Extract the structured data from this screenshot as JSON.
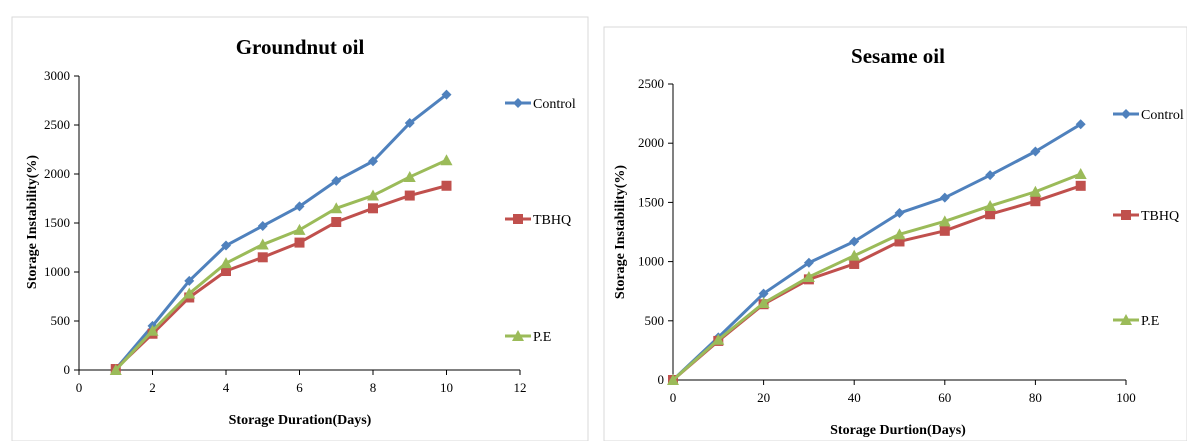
{
  "chart_data": [
    {
      "type": "line",
      "title": "Groundnut oil",
      "xlabel": "Storage Duration(Days)",
      "ylabel": "Storage Instability(%)",
      "xlim": [
        0,
        12
      ],
      "ylim": [
        0,
        3000
      ],
      "xticks": [
        0,
        2,
        4,
        6,
        8,
        10,
        12
      ],
      "yticks": [
        0,
        500,
        1000,
        1500,
        2000,
        2500,
        3000
      ],
      "x": [
        1,
        2,
        3,
        4,
        5,
        6,
        7,
        8,
        9,
        10
      ],
      "legend": "right",
      "grid": false,
      "series": [
        {
          "name": "Control",
          "color": "#4f81bd",
          "marker": "diamond",
          "values": [
            10,
            450,
            910,
            1270,
            1470,
            1670,
            1930,
            2130,
            2520,
            2810
          ]
        },
        {
          "name": "TBHQ",
          "color": "#c0504d",
          "marker": "square",
          "values": [
            10,
            370,
            740,
            1010,
            1150,
            1300,
            1510,
            1650,
            1780,
            1880
          ]
        },
        {
          "name": "P.E",
          "color": "#9bbb59",
          "marker": "triangle",
          "values": [
            0,
            400,
            780,
            1090,
            1280,
            1430,
            1650,
            1780,
            1970,
            2140
          ]
        }
      ]
    },
    {
      "type": "line",
      "title": "Sesame oil",
      "xlabel": "Storage Durtion(Days)",
      "ylabel": "Storage Instability(%)",
      "xlim": [
        0,
        100
      ],
      "ylim": [
        0,
        2500
      ],
      "xticks": [
        0,
        20,
        40,
        60,
        80,
        100
      ],
      "yticks": [
        0,
        500,
        1000,
        1500,
        2000,
        2500
      ],
      "x": [
        0,
        10,
        20,
        30,
        40,
        50,
        60,
        70,
        80,
        90
      ],
      "legend": "right",
      "grid": false,
      "series": [
        {
          "name": "Control",
          "color": "#4f81bd",
          "marker": "diamond",
          "values": [
            0,
            360,
            730,
            990,
            1170,
            1410,
            1540,
            1730,
            1930,
            2160
          ]
        },
        {
          "name": "TBHQ",
          "color": "#c0504d",
          "marker": "square",
          "values": [
            0,
            330,
            640,
            850,
            980,
            1170,
            1260,
            1400,
            1510,
            1640
          ]
        },
        {
          "name": "P.E",
          "color": "#9bbb59",
          "marker": "triangle",
          "values": [
            0,
            340,
            650,
            870,
            1050,
            1230,
            1340,
            1470,
            1590,
            1740
          ]
        }
      ]
    }
  ]
}
